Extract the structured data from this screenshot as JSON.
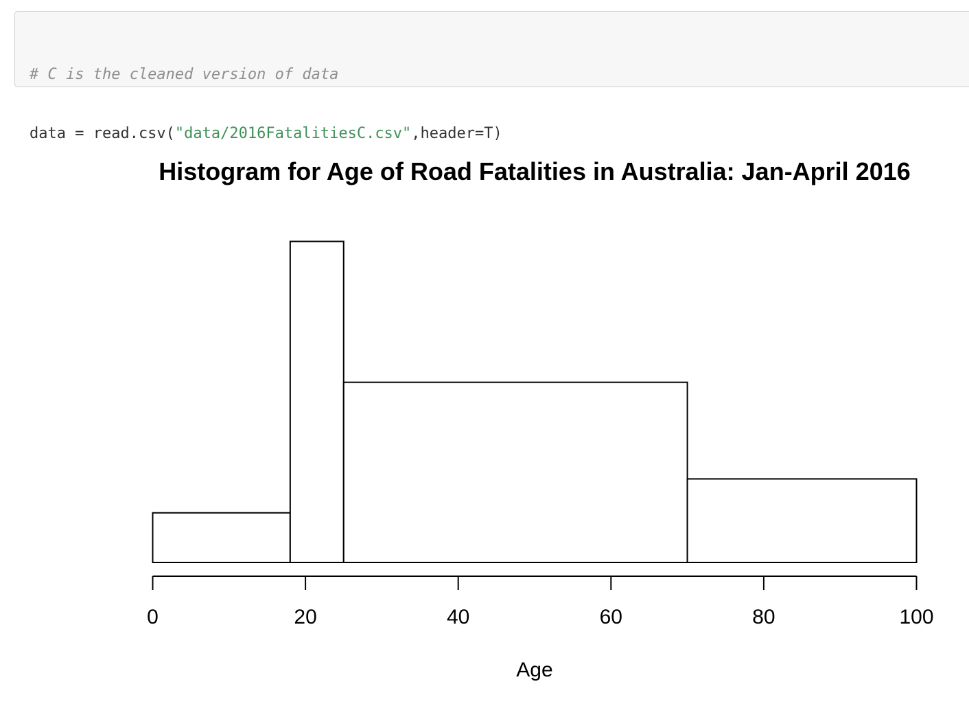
{
  "code": {
    "comment": "# C is the cleaned version of data",
    "line_prefix": "data = read.csv(",
    "line_string": "\"data/2016FatalitiesC.csv\"",
    "line_suffix": ",header=T)"
  },
  "colors": {
    "code_background": "#f7f7f7",
    "code_border": "#cfcfcf",
    "comment": "#8e8e8e",
    "string": "#3f9158",
    "bar_fill": "#ffffff",
    "bar_stroke": "#000000"
  },
  "chart_data": {
    "type": "bar",
    "subtype": "histogram",
    "title": "Histogram for Age of Road Fatalities in Australia: Jan-April 2016",
    "xlabel": "Age",
    "ylabel": "",
    "xlim": [
      0,
      100
    ],
    "ylim": [
      0,
      0.02
    ],
    "y_axis_shown": false,
    "grid": false,
    "breaks": [
      0,
      18,
      25,
      70,
      100
    ],
    "values": [
      0.00303,
      0.0196,
      0.011,
      0.0051
    ],
    "x_ticks": [
      0,
      20,
      40,
      60,
      80,
      100
    ],
    "x_tick_labels": [
      "0",
      "20",
      "40",
      "60",
      "80",
      "100"
    ]
  }
}
